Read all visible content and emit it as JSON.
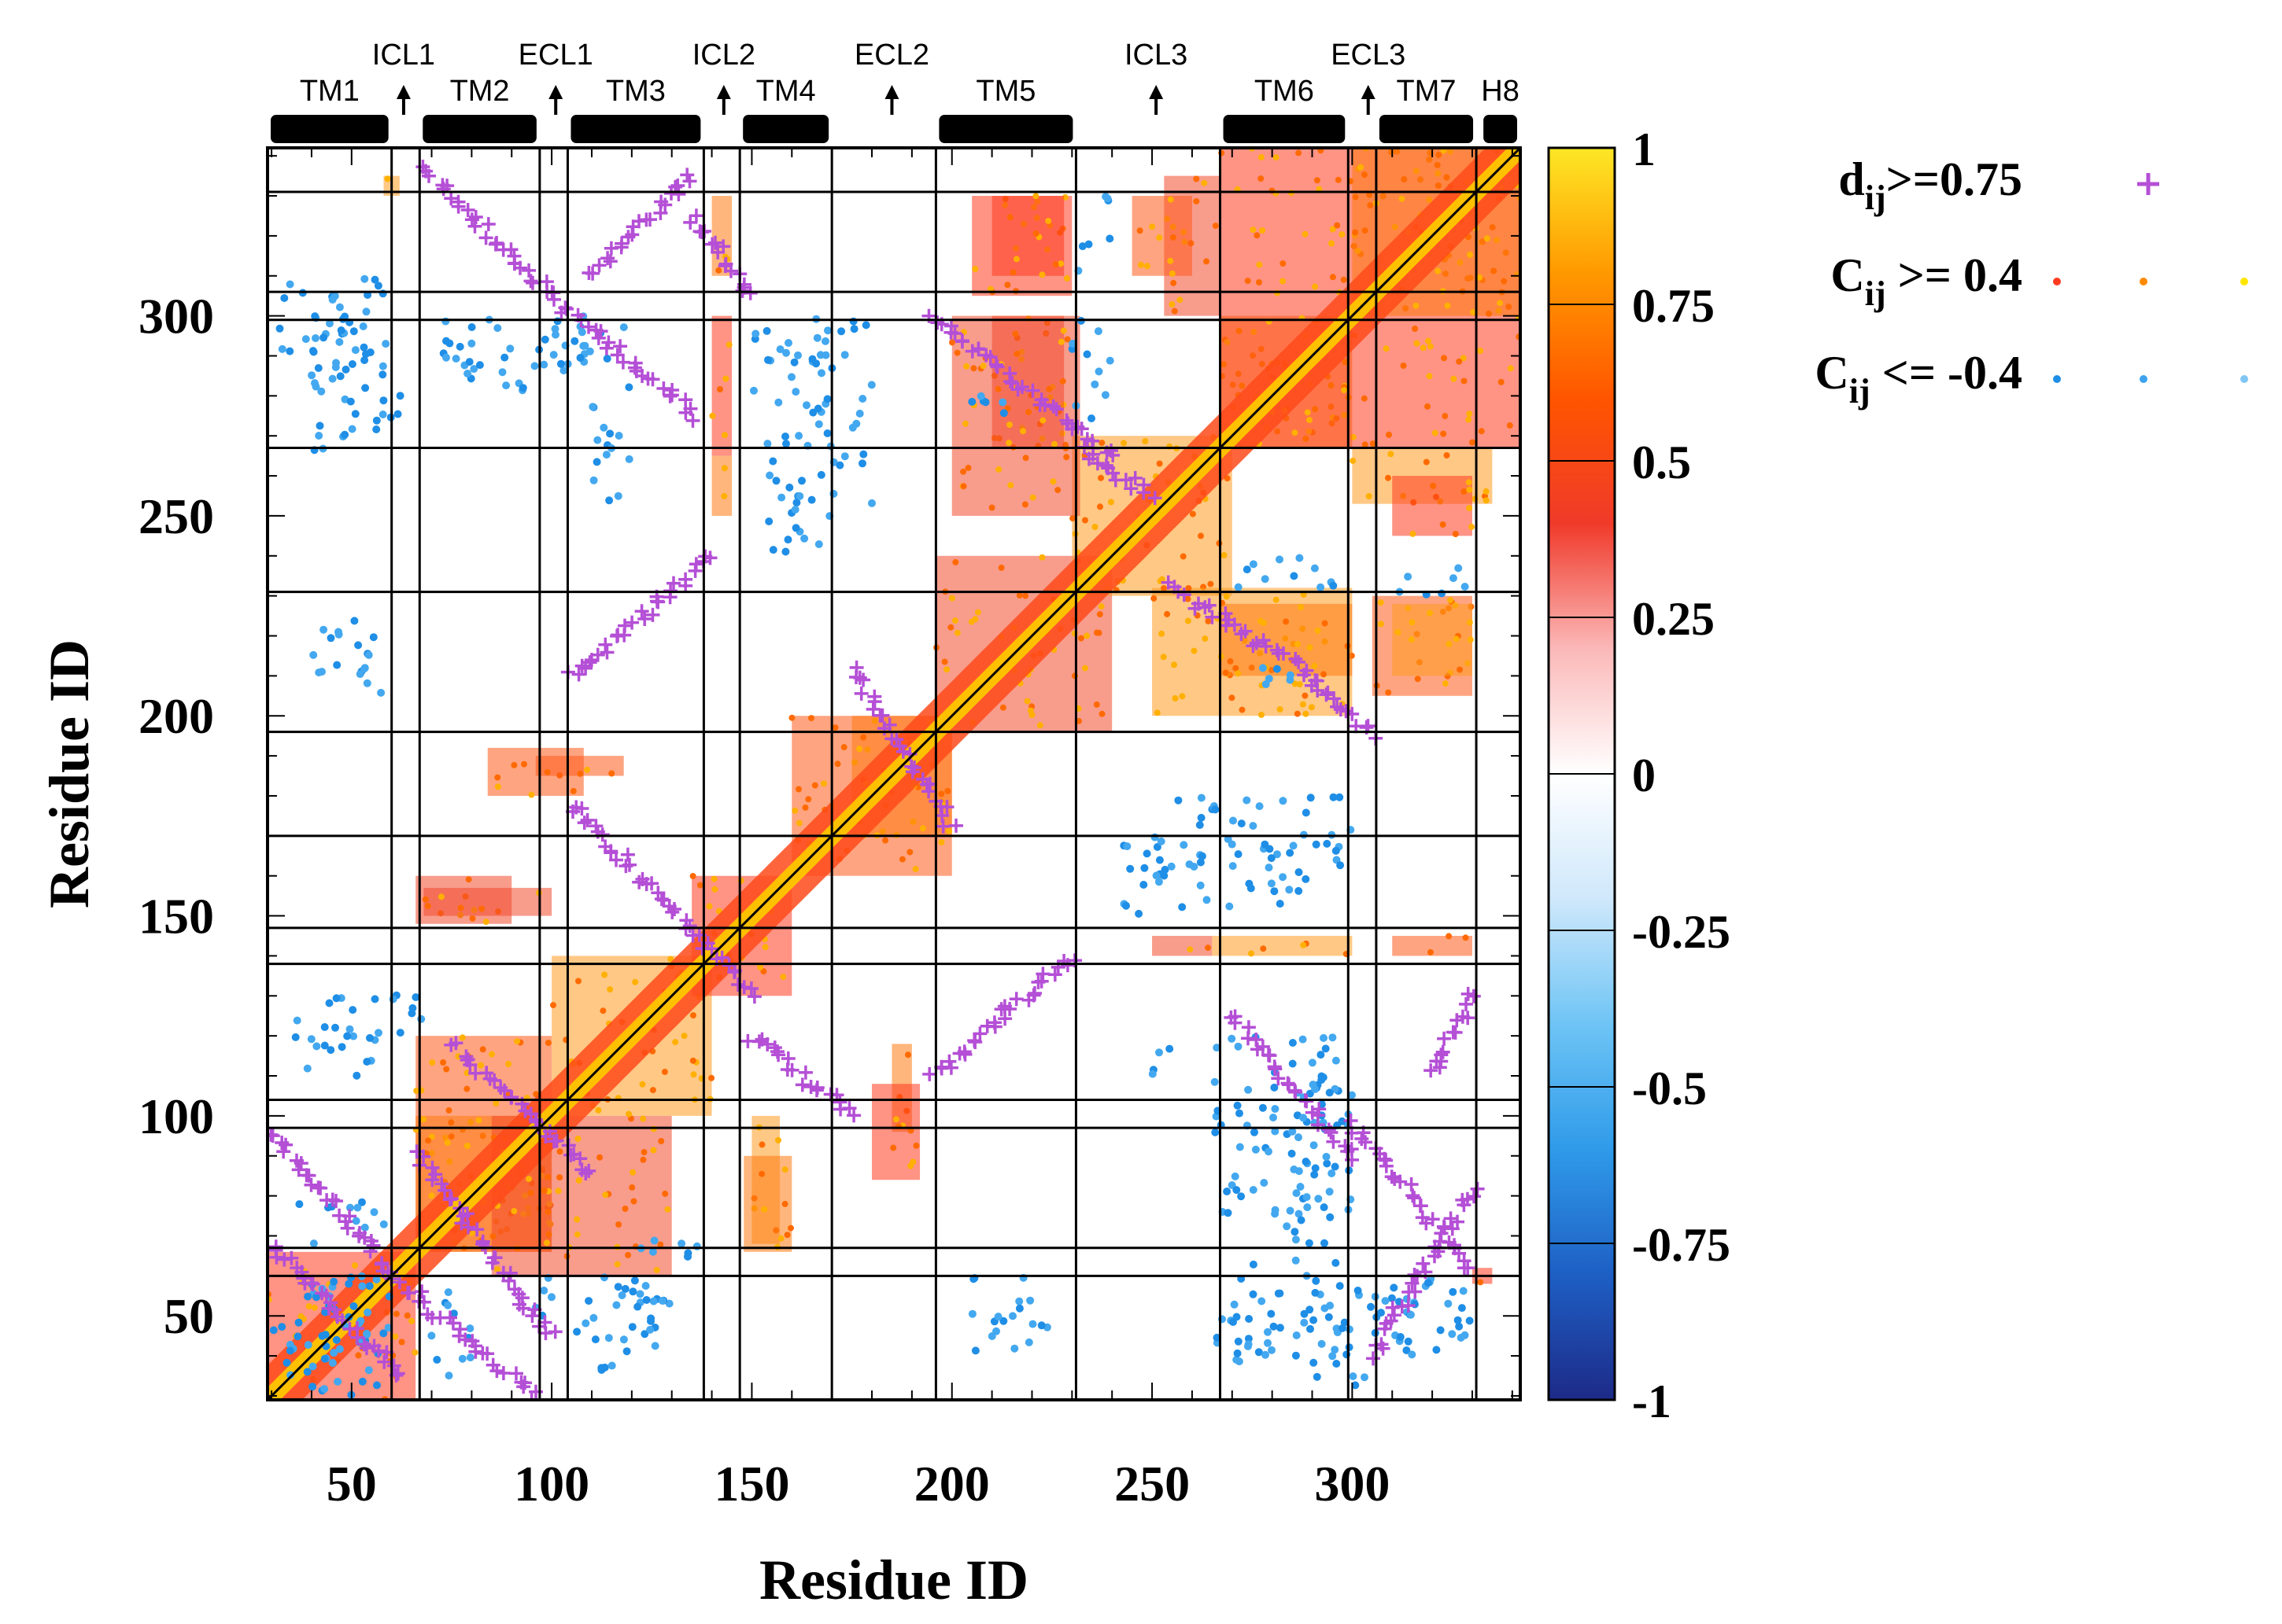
{
  "chart_data": {
    "type": "heatmap",
    "title": "",
    "xlabel": "Residue ID",
    "ylabel": "Residue ID",
    "xlim": [
      29,
      342
    ],
    "ylim": [
      29,
      342
    ],
    "x_ticks": [
      "50",
      "100",
      "150",
      "200",
      "250",
      "300"
    ],
    "y_ticks": [
      "50",
      "100",
      "150",
      "200",
      "250",
      "300"
    ],
    "colorbar": {
      "range": [
        -1,
        1
      ],
      "tick_labels": [
        "1",
        "0.75",
        "0.5",
        "0.25",
        "0",
        "-0.25",
        "-0.5",
        "-0.75",
        "-1"
      ],
      "colors_top_to_bottom": [
        "#fde725",
        "#ff9900",
        "#ff5500",
        "#f03a2a",
        "#fbb8b8",
        "#ffffff",
        "#cfe8fb",
        "#6ec4f5",
        "#2f9be9",
        "#1e5fc4",
        "#1d2a88"
      ]
    },
    "legend": [
      {
        "label_main": "d",
        "label_sub": "ij",
        "label_rest": ">=0.75",
        "marker": "plus",
        "color": "#b44fd6"
      },
      {
        "label_main": "C",
        "label_sub": "ij",
        "label_rest": " >= 0.4",
        "marker": "dot",
        "colors": [
          "#ff3b1f",
          "#ff8a00",
          "#ffe600"
        ]
      },
      {
        "label_main": "C",
        "label_sub": "ij",
        "label_rest": " <= -0.4",
        "marker": "dot",
        "colors": [
          "#1f8ee6",
          "#3da3ee",
          "#7fc6f3"
        ]
      }
    ],
    "segments": [
      {
        "name": "TM1",
        "kind": "helix",
        "start": 29,
        "end": 60
      },
      {
        "name": "ICL1",
        "kind": "loop",
        "at": 63
      },
      {
        "name": "TM2",
        "kind": "helix",
        "start": 67,
        "end": 97
      },
      {
        "name": "ECL1",
        "kind": "loop",
        "at": 101
      },
      {
        "name": "TM3",
        "kind": "helix",
        "start": 104,
        "end": 138
      },
      {
        "name": "ICL2",
        "kind": "loop",
        "at": 143
      },
      {
        "name": "TM4",
        "kind": "helix",
        "start": 147,
        "end": 170
      },
      {
        "name": "ECL2",
        "kind": "loop",
        "at": 185
      },
      {
        "name": "TM5",
        "kind": "helix",
        "start": 196,
        "end": 231
      },
      {
        "name": "ICL3",
        "kind": "loop",
        "at": 251
      },
      {
        "name": "TM6",
        "kind": "helix",
        "start": 267,
        "end": 299
      },
      {
        "name": "ECL3",
        "kind": "loop",
        "at": 304
      },
      {
        "name": "TM7",
        "kind": "helix",
        "start": 306,
        "end": 331
      },
      {
        "name": "H8",
        "kind": "helix",
        "start": 332,
        "end": 342
      }
    ],
    "boundaries": [
      60,
      67,
      97,
      104,
      138,
      147,
      170,
      196,
      231,
      267,
      299,
      306,
      331
    ],
    "pos_blocks": [
      [
        29,
        66,
        29,
        66
      ],
      [
        66,
        100,
        66,
        120
      ],
      [
        66,
        100,
        66,
        100
      ],
      [
        85,
        130,
        60,
        100
      ],
      [
        100,
        140,
        100,
        140
      ],
      [
        135,
        160,
        130,
        160
      ],
      [
        160,
        200,
        160,
        200
      ],
      [
        175,
        200,
        170,
        200
      ],
      [
        196,
        240,
        196,
        240
      ],
      [
        230,
        270,
        230,
        270
      ],
      [
        267,
        342,
        267,
        342
      ],
      [
        267,
        300,
        267,
        300
      ],
      [
        300,
        342,
        300,
        342
      ],
      [
        200,
        232,
        250,
        300
      ],
      [
        250,
        300,
        200,
        232
      ],
      [
        205,
        230,
        305,
        330
      ],
      [
        305,
        330,
        205,
        230
      ],
      [
        267,
        300,
        210,
        228
      ],
      [
        210,
        228,
        267,
        300
      ],
      [
        310,
        330,
        210,
        228
      ],
      [
        210,
        228,
        310,
        330
      ],
      [
        96,
        118,
        185,
        190
      ],
      [
        185,
        190,
        96,
        118
      ],
      [
        68,
        100,
        150,
        157
      ],
      [
        150,
        157,
        68,
        100
      ],
      [
        180,
        192,
        84,
        108
      ],
      [
        84,
        108,
        180,
        192
      ],
      [
        148,
        160,
        66,
        90
      ],
      [
        66,
        90,
        148,
        160
      ],
      [
        265,
        300,
        140,
        145
      ],
      [
        140,
        145,
        265,
        300
      ],
      [
        310,
        330,
        140,
        145
      ],
      [
        140,
        145,
        310,
        330
      ],
      [
        253,
        267,
        300,
        335
      ],
      [
        300,
        335,
        253,
        267
      ],
      [
        310,
        330,
        245,
        260
      ],
      [
        245,
        260,
        310,
        330
      ],
      [
        140,
        145,
        250,
        265
      ],
      [
        250,
        265,
        140,
        145
      ],
      [
        58,
        62,
        330,
        335
      ],
      [
        330,
        335,
        58,
        62
      ]
    ],
    "neg_blocks": [
      [
        32,
        60,
        30,
        60
      ],
      [
        30,
        60,
        32,
        60
      ],
      [
        32,
        60,
        290,
        310
      ],
      [
        290,
        310,
        32,
        60
      ],
      [
        38,
        55,
        265,
        300
      ],
      [
        265,
        300,
        38,
        55
      ],
      [
        40,
        55,
        210,
        225
      ],
      [
        210,
        225,
        40,
        55
      ],
      [
        42,
        58,
        115,
        130
      ],
      [
        115,
        130,
        42,
        58
      ],
      [
        68,
        110,
        285,
        295
      ],
      [
        285,
        295,
        68,
        110
      ],
      [
        68,
        80,
        35,
        60
      ],
      [
        35,
        60,
        68,
        80
      ],
      [
        110,
        130,
        35,
        55
      ],
      [
        35,
        55,
        110,
        130
      ],
      [
        150,
        170,
        240,
        300
      ],
      [
        240,
        300,
        150,
        170
      ],
      [
        160,
        165,
        245,
        255
      ],
      [
        245,
        255,
        160,
        165
      ],
      [
        205,
        220,
        40,
        60
      ],
      [
        40,
        60,
        205,
        220
      ],
      [
        205,
        215,
        275,
        285
      ],
      [
        275,
        285,
        205,
        215
      ],
      [
        250,
        300,
        165,
        180
      ],
      [
        165,
        180,
        250,
        300
      ],
      [
        270,
        300,
        40,
        65
      ],
      [
        40,
        65,
        270,
        300
      ],
      [
        310,
        330,
        40,
        60
      ],
      [
        310,
        330,
        40,
        60
      ],
      [
        280,
        300,
        70,
        110
      ],
      [
        70,
        110,
        280,
        300
      ],
      [
        250,
        300,
        110,
        120
      ],
      [
        110,
        120,
        250,
        300
      ],
      [
        265,
        300,
        75,
        110
      ],
      [
        310,
        330,
        230,
        240
      ],
      [
        230,
        240,
        310,
        330
      ],
      [
        270,
        300,
        230,
        240
      ],
      [
        230,
        240,
        270,
        300
      ],
      [
        120,
        140,
        60,
        70
      ],
      [
        60,
        70,
        120,
        140
      ],
      [
        95,
        125,
        45,
        60
      ]
    ],
    "purple_segments": [
      [
        [
          62,
          35
        ],
        [
          30,
          68
        ]
      ],
      [
        [
          68,
          336
        ],
        [
          100,
          305
        ]
      ],
      [
        [
          100,
          305
        ],
        [
          136,
          275
        ]
      ],
      [
        [
          30,
          96
        ],
        [
          60,
          60
        ]
      ],
      [
        [
          60,
          60
        ],
        [
          96,
          30
        ]
      ],
      [
        [
          105,
          210
        ],
        [
          140,
          240
        ]
      ],
      [
        [
          105,
          178
        ],
        [
          150,
          130
        ]
      ],
      [
        [
          110,
          310
        ],
        [
          135,
          335
        ]
      ],
      [
        [
          150,
          120
        ],
        [
          175,
          100
        ]
      ],
      [
        [
          175,
          212
        ],
        [
          200,
          172
        ]
      ],
      [
        [
          195,
          300
        ],
        [
          240,
          265
        ]
      ],
      [
        [
          195,
          110
        ],
        [
          230,
          140
        ]
      ],
      [
        [
          270,
          125
        ],
        [
          300,
          90
        ]
      ],
      [
        [
          300,
          98
        ],
        [
          330,
          62
        ]
      ],
      [
        [
          305,
          40
        ],
        [
          330,
          82
        ]
      ],
      [
        [
          255,
          232
        ],
        [
          290,
          210
        ]
      ],
      [
        [
          290,
          210
        ],
        [
          305,
          195
        ]
      ],
      [
        [
          233,
          266
        ],
        [
          250,
          255
        ]
      ],
      [
        [
          320,
          110
        ],
        [
          330,
          130
        ]
      ],
      [
        [
          66,
          90
        ],
        [
          100,
          45
        ]
      ],
      [
        [
          75,
          118
        ],
        [
          110,
          85
        ]
      ],
      [
        [
          135,
          325
        ],
        [
          150,
          305
        ]
      ]
    ]
  }
}
